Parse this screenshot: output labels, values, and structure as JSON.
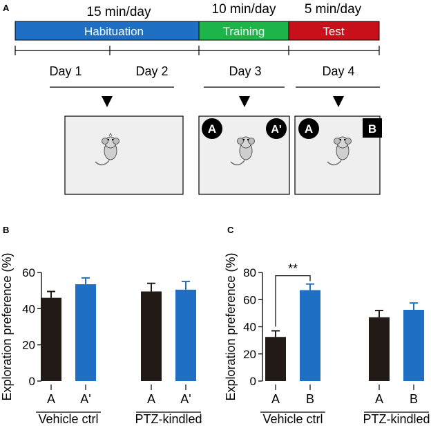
{
  "panel_a": {
    "label": "A",
    "phases": [
      {
        "duration": "15 min/day",
        "name": "Habituation",
        "color": "#1f6fc5",
        "days": [
          "Day 1",
          "Day 2"
        ]
      },
      {
        "duration": "10 min/day",
        "name": "Training",
        "color": "#1db44a",
        "days": [
          "Day 3"
        ]
      },
      {
        "duration": "5 min/day",
        "name": "Test",
        "color": "#c8101a",
        "days": [
          "Day 4"
        ]
      }
    ],
    "arenas": [
      {
        "objects": []
      },
      {
        "objects": [
          "A",
          "A'"
        ]
      },
      {
        "objects": [
          "A",
          "B"
        ]
      }
    ]
  },
  "chart_data": [
    {
      "panel": "B",
      "type": "bar",
      "ylabel": "Exploration preference (%)",
      "ylim": [
        0,
        60
      ],
      "yticks": [
        0,
        20,
        40,
        60
      ],
      "groups": [
        {
          "name": "Vehicle ctrl",
          "categories": [
            "A",
            "A'"
          ],
          "values": [
            46,
            53.5
          ],
          "errors": [
            3.5,
            3.5
          ]
        },
        {
          "name": "PTZ-kindled",
          "categories": [
            "A",
            "A'"
          ],
          "values": [
            49.5,
            50.5
          ],
          "errors": [
            4.5,
            4.5
          ]
        }
      ],
      "bar_colors": [
        "#221a17",
        "#1f6fc5"
      ],
      "significance": []
    },
    {
      "panel": "C",
      "type": "bar",
      "ylabel": "Exploration preference (%)",
      "ylim": [
        0,
        80
      ],
      "yticks": [
        0,
        20,
        40,
        60,
        80
      ],
      "groups": [
        {
          "name": "Vehicle ctrl",
          "categories": [
            "A",
            "B"
          ],
          "values": [
            32.5,
            67
          ],
          "errors": [
            4.5,
            4.5
          ]
        },
        {
          "name": "PTZ-kindled",
          "categories": [
            "A",
            "B"
          ],
          "values": [
            47,
            52.5
          ],
          "errors": [
            5,
            5
          ]
        }
      ],
      "bar_colors": [
        "#221a17",
        "#1f6fc5"
      ],
      "significance": [
        {
          "group": 0,
          "label": "**"
        }
      ]
    }
  ]
}
